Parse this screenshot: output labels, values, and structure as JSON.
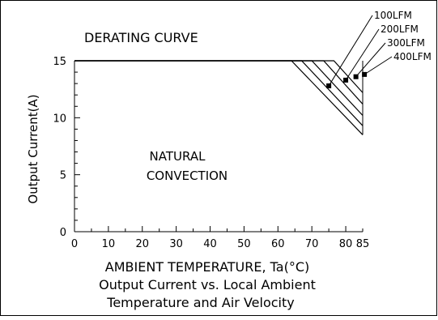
{
  "chart_data": {
    "type": "line",
    "title": "DERATING CURVE",
    "xlabel": "AMBIENT TEMPERATURE, Ta(°C)",
    "ylabel": "Output Current(A)",
    "caption_lines": [
      "Output Current vs. Local Ambient",
      "Temperature and Air Velocity"
    ],
    "annotation_lines": [
      "NATURAL",
      "CONVECTION"
    ],
    "xlim": [
      0,
      85
    ],
    "ylim": [
      0,
      15
    ],
    "x_ticks": [
      0,
      10,
      20,
      30,
      40,
      50,
      60,
      70,
      80,
      85
    ],
    "y_ticks": [
      0,
      5,
      10,
      15
    ],
    "grid": false,
    "series": [
      {
        "values": [
          [
            0,
            15
          ],
          [
            64,
            15
          ],
          [
            85,
            8.5
          ]
        ]
      },
      {
        "name": "100LFM",
        "values": [
          [
            0,
            15
          ],
          [
            67,
            15
          ],
          [
            85,
            9.3
          ]
        ]
      },
      {
        "name": "200LFM",
        "values": [
          [
            0,
            15
          ],
          [
            70,
            15
          ],
          [
            85,
            10.2
          ]
        ]
      },
      {
        "name": "300LFM",
        "values": [
          [
            0,
            15
          ],
          [
            73.5,
            15
          ],
          [
            85,
            11.2
          ]
        ]
      },
      {
        "name": "400LFM",
        "values": [
          [
            0,
            15
          ],
          [
            76.5,
            15
          ],
          [
            85,
            12.2
          ]
        ]
      }
    ],
    "markers": [
      {
        "series": "100LFM",
        "x": 75,
        "y": 12.8
      },
      {
        "series": "200LFM",
        "x": 80,
        "y": 13.3
      },
      {
        "series": "300LFM",
        "x": 83,
        "y": 13.6
      },
      {
        "series": "400LFM",
        "x": 85.5,
        "y": 13.8
      }
    ],
    "legend_placement": "top-right (labels with leader lines)"
  }
}
